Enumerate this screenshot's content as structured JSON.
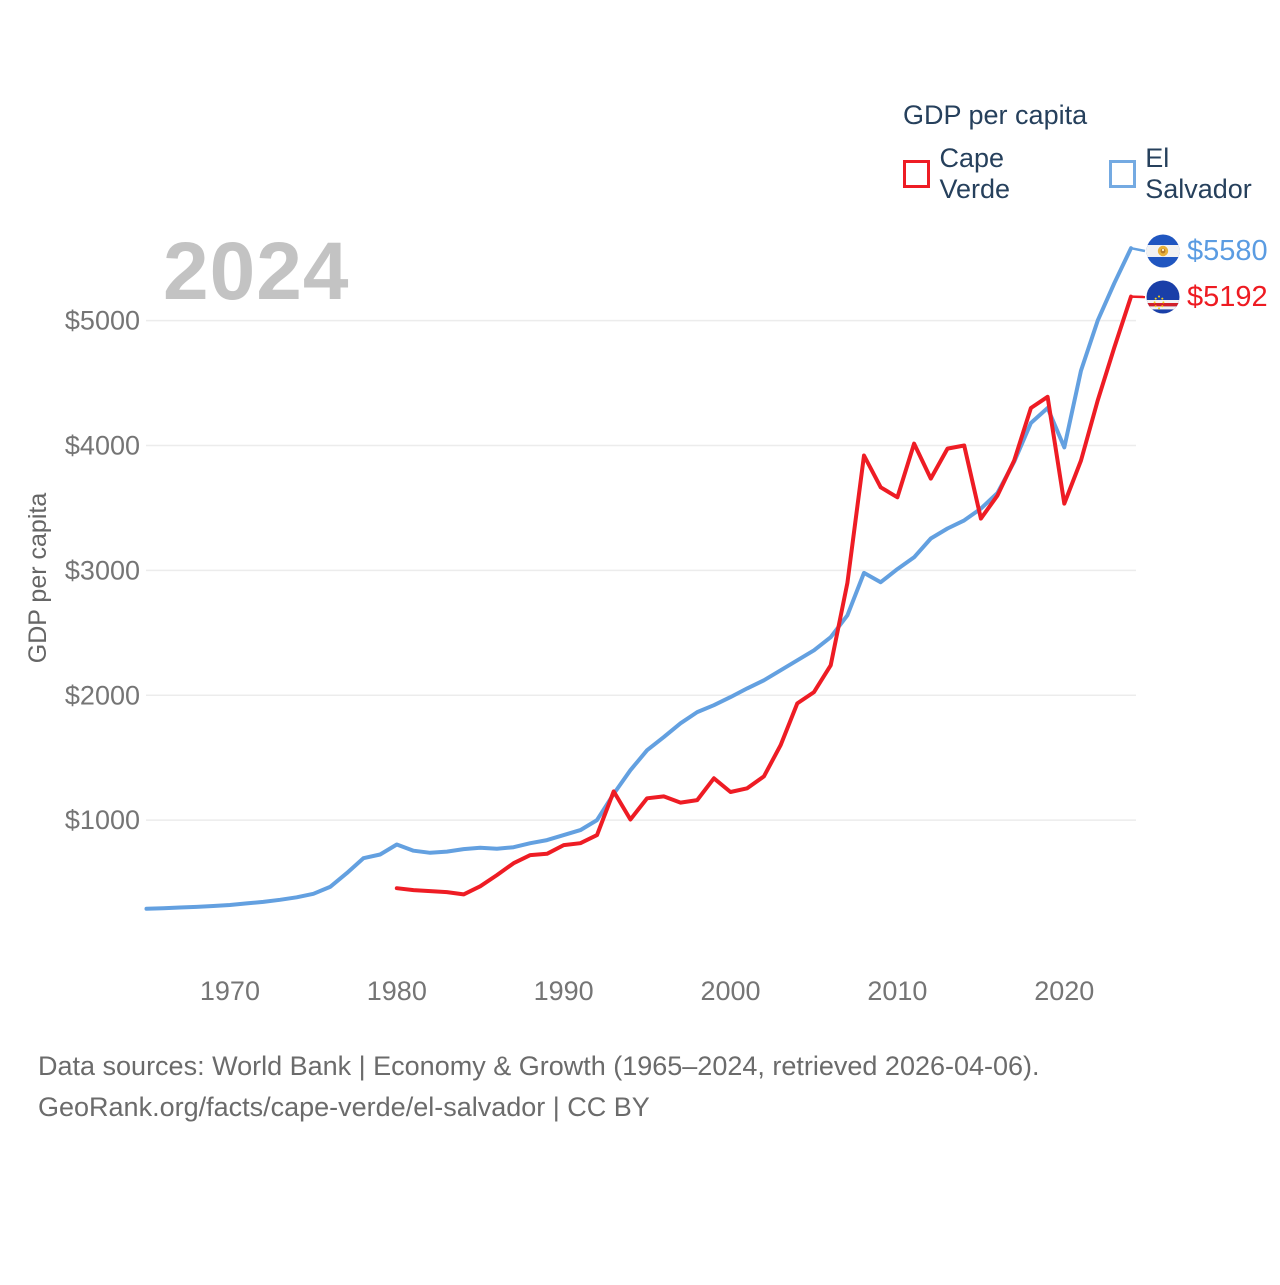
{
  "watermark_year": "2024",
  "legend": {
    "title": "GDP per capita",
    "items": [
      {
        "label": "Cape Verde",
        "color": "#ee1c24"
      },
      {
        "label": "El Salvador",
        "color": "#74aae2"
      }
    ]
  },
  "y_axis": {
    "title": "GDP per capita",
    "ticks": [
      {
        "value": 1000,
        "label": "$1000"
      },
      {
        "value": 2000,
        "label": "$2000"
      },
      {
        "value": 3000,
        "label": "$3000"
      },
      {
        "value": 4000,
        "label": "$4000"
      },
      {
        "value": 5000,
        "label": "$5000"
      }
    ]
  },
  "x_axis": {
    "ticks": [
      {
        "value": 1970,
        "label": "1970"
      },
      {
        "value": 1980,
        "label": "1980"
      },
      {
        "value": 1990,
        "label": "1990"
      },
      {
        "value": 2000,
        "label": "2000"
      },
      {
        "value": 2010,
        "label": "2010"
      },
      {
        "value": 2020,
        "label": "2020"
      }
    ]
  },
  "end_labels": [
    {
      "series": "El Salvador",
      "label": "$5580",
      "value": 5580,
      "flag": "el-salvador"
    },
    {
      "series": "Cape Verde",
      "label": "$5192",
      "value": 5192,
      "flag": "cape-verde"
    }
  ],
  "footer": {
    "line1": "Data sources: World Bank | Economy & Growth (1965–2024, retrieved 2026-04-06).",
    "line2": "GeoRank.org/facts/cape-verde/el-salvador | CC BY"
  },
  "chart_data": {
    "type": "line",
    "title": "GDP per capita",
    "ylabel": "GDP per capita",
    "xlabel": "",
    "x_range": [
      1965,
      2024
    ],
    "ylim": [
      0,
      5800
    ],
    "grid": true,
    "legend_position": "top-right",
    "series": [
      {
        "name": "El Salvador",
        "color": "#63a0e0",
        "start_year": 1965,
        "values": [
          290,
          295,
          300,
          305,
          312,
          320,
          333,
          345,
          362,
          382,
          410,
          465,
          575,
          695,
          725,
          805,
          755,
          738,
          748,
          768,
          778,
          770,
          783,
          815,
          840,
          880,
          920,
          1000,
          1210,
          1400,
          1560,
          1665,
          1775,
          1865,
          1920,
          1985,
          2055,
          2120,
          2200,
          2280,
          2360,
          2465,
          2640,
          2980,
          2905,
          3010,
          3105,
          3255,
          3335,
          3400,
          3495,
          3620,
          3870,
          4180,
          4300,
          3985,
          4600,
          5000,
          5300,
          5580
        ]
      },
      {
        "name": "Cape Verde",
        "color": "#ee1c24",
        "start_year": 1980,
        "values": [
          455,
          440,
          432,
          424,
          405,
          470,
          560,
          655,
          720,
          730,
          800,
          815,
          880,
          1230,
          1005,
          1175,
          1190,
          1140,
          1160,
          1335,
          1225,
          1255,
          1350,
          1600,
          1935,
          2025,
          2240,
          2900,
          3920,
          3665,
          3585,
          4015,
          3735,
          3975,
          4000,
          3415,
          3600,
          3880,
          4300,
          4390,
          3535,
          3880,
          4360,
          4785,
          5192
        ]
      }
    ]
  }
}
